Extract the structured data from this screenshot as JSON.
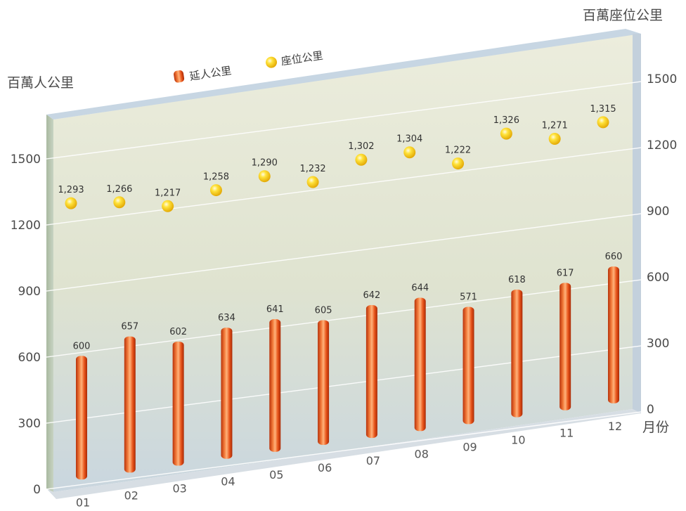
{
  "chart_data": {
    "type": "bar",
    "categories": [
      "01",
      "02",
      "03",
      "04",
      "05",
      "06",
      "07",
      "08",
      "09",
      "10",
      "11",
      "12"
    ],
    "x_unit": "月份",
    "series": [
      {
        "name": "延人公里",
        "axis": "left",
        "values": [
          600,
          657,
          602,
          634,
          641,
          605,
          642,
          644,
          571,
          618,
          617,
          660
        ]
      },
      {
        "name": "座位公里",
        "axis": "right",
        "values": [
          1293,
          1266,
          1217,
          1258,
          1290,
          1232,
          1302,
          1304,
          1222,
          1326,
          1271,
          1315
        ]
      }
    ],
    "left_axis": {
      "label": "百萬人公里",
      "ticks": [
        0,
        300,
        600,
        900,
        1200,
        1500
      ],
      "range": [
        0,
        1500
      ]
    },
    "right_axis": {
      "label": "百萬座位公里",
      "ticks": [
        0,
        300,
        600,
        900,
        1200,
        1500
      ],
      "range": [
        0,
        1500
      ]
    },
    "value_labels": {
      "bars": [
        "600",
        "657",
        "602",
        "634",
        "641",
        "605",
        "642",
        "644",
        "571",
        "618",
        "617",
        "660"
      ],
      "dots": [
        "1,293",
        "1,266",
        "1,217",
        "1,258",
        "1,290",
        "1,232",
        "1,302",
        "1,304",
        "1,222",
        "1,326",
        "1,271",
        "1,315"
      ]
    },
    "legend_position": "top-center",
    "colors": {
      "bar": "#e8541a",
      "dot": "#f3c400",
      "panel_top": "#eaeadb",
      "panel_bottom": "#cfd9e0"
    }
  }
}
